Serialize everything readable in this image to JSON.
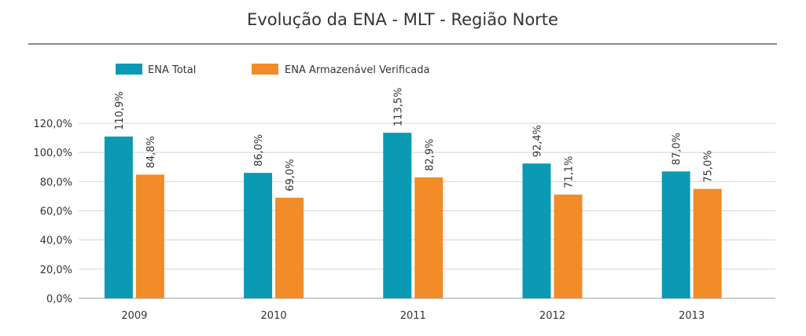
{
  "chart_data": {
    "type": "bar",
    "title": "Evolução da ENA - MLT - Região Norte",
    "xlabel": "",
    "ylabel": "",
    "categories": [
      "2009",
      "2010",
      "2011",
      "2012",
      "2013"
    ],
    "series": [
      {
        "name": "ENA Total",
        "color": "#0a9ab4",
        "values": [
          110.9,
          86.0,
          113.5,
          92.4,
          87.0
        ],
        "labels": [
          "110,9%",
          "86,0%",
          "113,5%",
          "92,4%",
          "87,0%"
        ]
      },
      {
        "name": "ENA Armazenável Verificada",
        "color": "#f28c28",
        "values": [
          84.8,
          69.0,
          82.9,
          71.1,
          75.0
        ],
        "labels": [
          "84,8%",
          "69,0%",
          "82,9%",
          "71,1%",
          "75,0%"
        ]
      }
    ],
    "ylim": [
      0,
      120
    ],
    "yticks": [
      0,
      20,
      40,
      60,
      80,
      100,
      120
    ],
    "ytick_labels": [
      "0,0%",
      "20,0%",
      "40,0%",
      "60,0%",
      "80,0%",
      "100,0%",
      "120,0%"
    ],
    "grid": true,
    "legend_position": "top-left"
  }
}
